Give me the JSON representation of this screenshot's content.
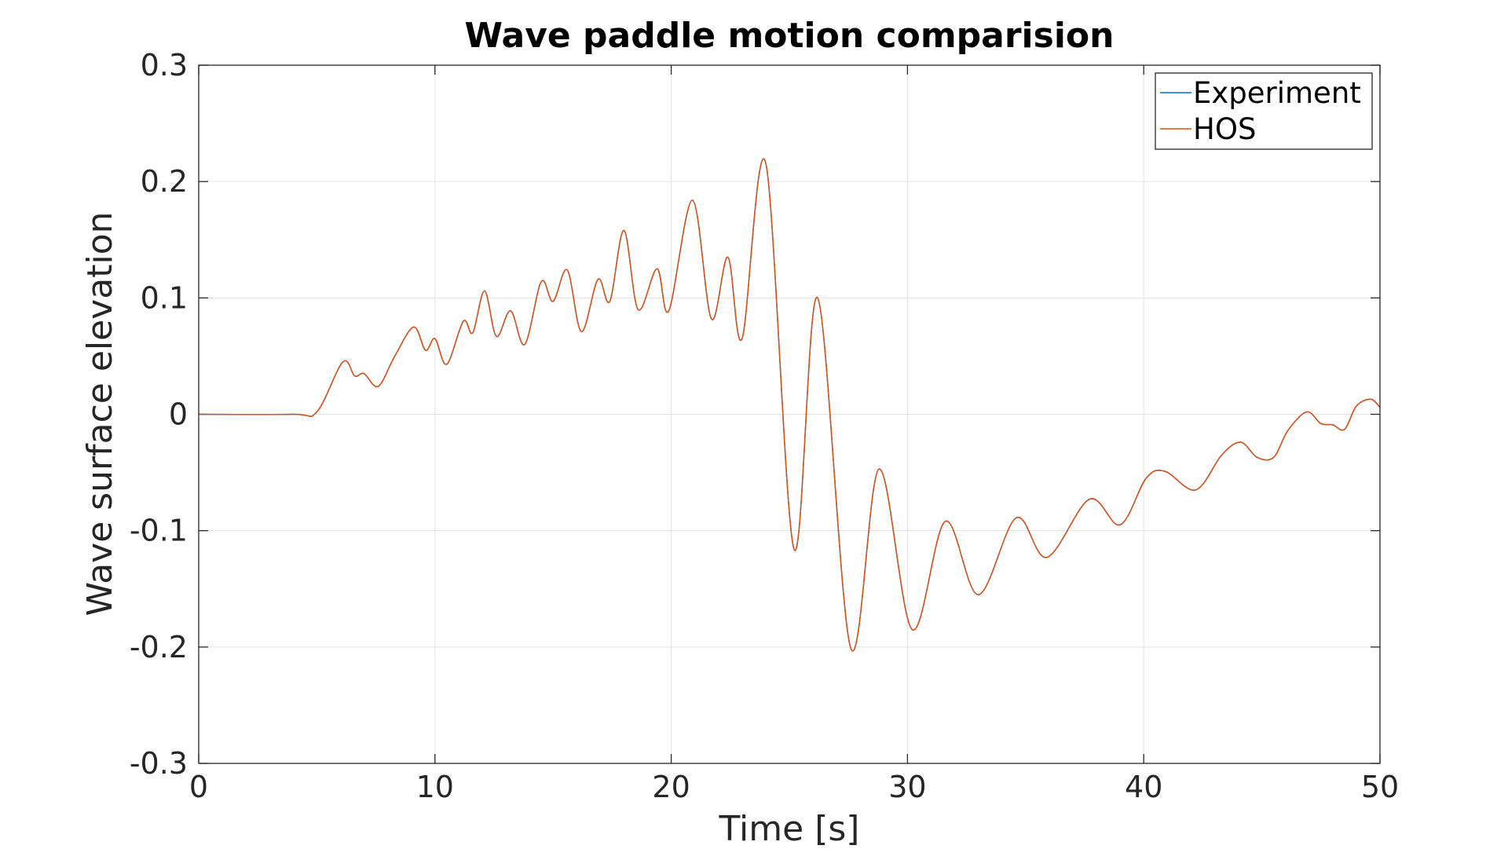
{
  "chart_data": {
    "type": "line",
    "title": "Wave paddle motion comparision",
    "xlabel": "Time [s]",
    "ylabel": "Wave surface elevation",
    "xlim": [
      0,
      50
    ],
    "ylim": [
      -0.3,
      0.3
    ],
    "xticks": [
      0,
      10,
      20,
      30,
      40,
      50
    ],
    "xtick_labels": [
      "0",
      "10",
      "20",
      "30",
      "40",
      "50"
    ],
    "yticks": [
      -0.3,
      -0.2,
      -0.1,
      0,
      0.1,
      0.2,
      0.3
    ],
    "ytick_labels": [
      "-0.3",
      "-0.2",
      "-0.1",
      "0",
      "0.1",
      "0.2",
      "0.3"
    ],
    "grid": true,
    "legend_position": "top-right",
    "series": [
      {
        "name": "Experiment",
        "color": "#0072BD",
        "x": [
          0,
          4.0,
          5.0,
          6.1,
          6.6,
          7.0,
          7.6,
          8.3,
          9.1,
          9.6,
          10.0,
          10.5,
          11.2,
          11.6,
          12.1,
          12.6,
          13.2,
          13.8,
          14.5,
          15.0,
          15.6,
          16.2,
          16.9,
          17.4,
          18.0,
          18.6,
          19.4,
          19.9,
          20.9,
          21.7,
          22.4,
          23.0,
          24.0,
          25.2,
          26.2,
          27.6,
          28.8,
          30.2,
          31.6,
          33.0,
          34.6,
          35.9,
          37.7,
          39.0,
          40.1,
          40.9,
          42.2,
          43.3,
          44.1,
          44.8,
          45.5,
          46.1,
          46.9,
          47.5,
          48.0,
          48.5,
          49.0,
          49.6,
          50.0
        ],
        "values": [
          0,
          0,
          0.002,
          0.045,
          0.033,
          0.035,
          0.024,
          0.05,
          0.075,
          0.055,
          0.065,
          0.043,
          0.08,
          0.07,
          0.106,
          0.067,
          0.089,
          0.06,
          0.114,
          0.097,
          0.124,
          0.071,
          0.116,
          0.097,
          0.158,
          0.09,
          0.125,
          0.089,
          0.184,
          0.082,
          0.135,
          0.065,
          0.216,
          -0.116,
          0.1,
          -0.201,
          -0.047,
          -0.185,
          -0.092,
          -0.155,
          -0.089,
          -0.123,
          -0.073,
          -0.095,
          -0.055,
          -0.049,
          -0.065,
          -0.035,
          -0.024,
          -0.037,
          -0.037,
          -0.014,
          0.002,
          -0.008,
          -0.009,
          -0.013,
          0.007,
          0.013,
          0.006
        ]
      },
      {
        "name": "HOS",
        "color": "#D95319",
        "x": [
          0,
          4.0,
          5.0,
          6.1,
          6.6,
          7.0,
          7.6,
          8.3,
          9.1,
          9.6,
          10.0,
          10.5,
          11.2,
          11.6,
          12.1,
          12.6,
          13.2,
          13.8,
          14.5,
          15.0,
          15.6,
          16.2,
          16.9,
          17.4,
          18.0,
          18.6,
          19.4,
          19.9,
          20.9,
          21.7,
          22.4,
          23.0,
          24.0,
          25.2,
          26.2,
          27.6,
          28.8,
          30.2,
          31.6,
          33.0,
          34.6,
          35.9,
          37.7,
          39.0,
          40.1,
          40.9,
          42.2,
          43.3,
          44.1,
          44.8,
          45.5,
          46.1,
          46.9,
          47.5,
          48.0,
          48.5,
          49.0,
          49.6,
          50.0
        ],
        "values": [
          0,
          0,
          0.002,
          0.045,
          0.033,
          0.035,
          0.024,
          0.05,
          0.075,
          0.055,
          0.065,
          0.043,
          0.08,
          0.07,
          0.106,
          0.067,
          0.089,
          0.06,
          0.114,
          0.097,
          0.124,
          0.071,
          0.116,
          0.097,
          0.158,
          0.09,
          0.125,
          0.089,
          0.184,
          0.082,
          0.135,
          0.065,
          0.216,
          -0.116,
          0.1,
          -0.201,
          -0.047,
          -0.185,
          -0.092,
          -0.155,
          -0.089,
          -0.123,
          -0.073,
          -0.095,
          -0.055,
          -0.049,
          -0.065,
          -0.035,
          -0.024,
          -0.037,
          -0.037,
          -0.014,
          0.002,
          -0.008,
          -0.009,
          -0.013,
          0.007,
          0.013,
          0.006
        ]
      }
    ]
  }
}
